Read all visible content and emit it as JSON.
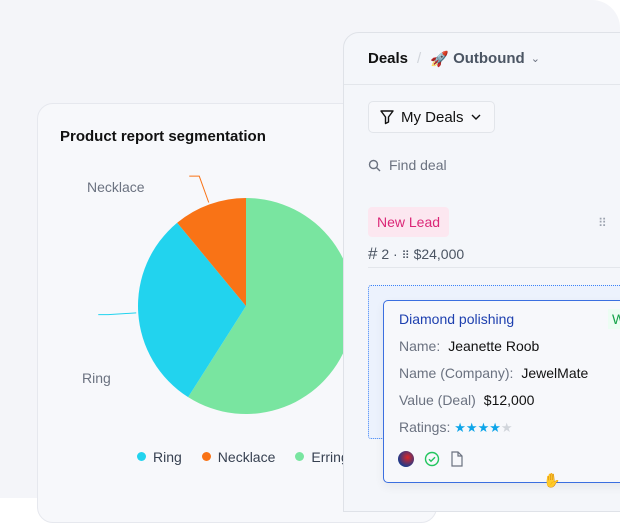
{
  "chart_data": {
    "type": "pie",
    "title": "Product report segmentation",
    "categories": [
      "Ring",
      "Necklace",
      "Errings"
    ],
    "values": [
      30,
      11,
      59
    ],
    "colors": [
      "#22d3ee",
      "#f97316",
      "#79e5a0"
    ],
    "legend_position": "bottom"
  },
  "deals": {
    "title": "Deals",
    "view": "Outbound",
    "view_icon": "rocket-icon",
    "filter_label": "My Deals",
    "search_placeholder": "Find deal",
    "stage": {
      "label": "New Lead",
      "count": "2",
      "total": "$24,000",
      "color": "#db2777"
    },
    "card": {
      "title": "Diamond polishing",
      "badge": "W",
      "name_label": "Name:",
      "name": "Jeanette Roob",
      "company_label": "Name (Company):",
      "company": "JewelMate",
      "value_label": "Value (Deal)",
      "value": "$12,000",
      "ratings_label": "Ratings:",
      "rating": 4,
      "rating_max": 5
    }
  }
}
